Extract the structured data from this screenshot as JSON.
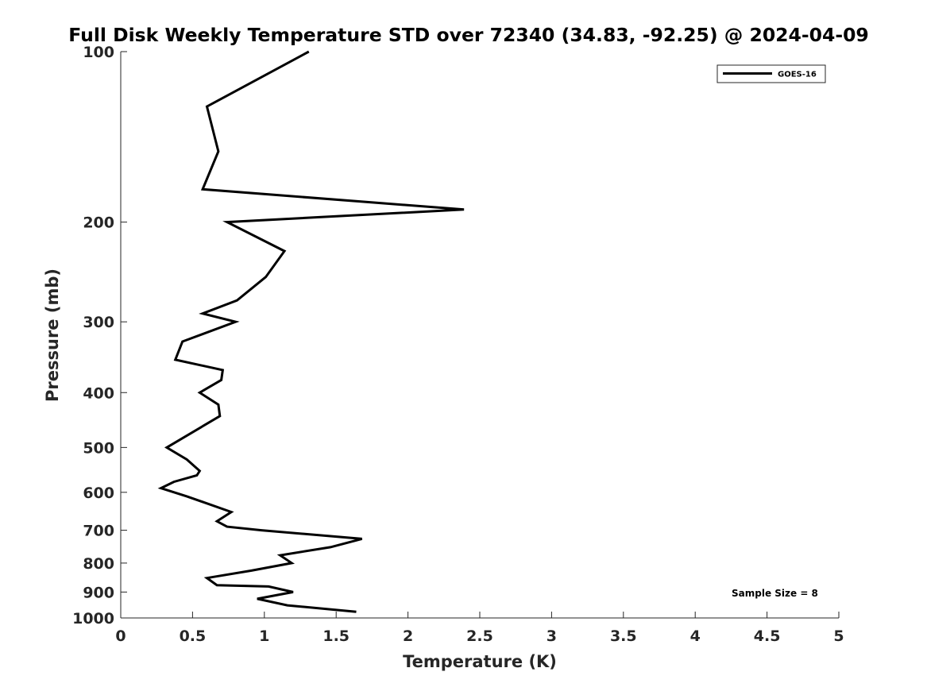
{
  "chart_data": {
    "type": "line",
    "title": "Full Disk Weekly Temperature STD over 72340 (34.83, -92.25) @ 2024-04-09",
    "xlabel": "Temperature (K)",
    "ylabel": "Pressure (mb)",
    "xlim": [
      0,
      5
    ],
    "ylim": [
      100,
      1000
    ],
    "y_scale": "log",
    "y_reversed": true,
    "x_ticks": [
      "0",
      "0.5",
      "1",
      "1.5",
      "2",
      "2.5",
      "3",
      "3.5",
      "4",
      "4.5",
      "5"
    ],
    "y_ticks": [
      "100",
      "200",
      "300",
      "400",
      "500",
      "600",
      "700",
      "800",
      "900",
      "1000"
    ],
    "grid": false,
    "legend_position": "top-right",
    "series": [
      {
        "name": "GOES-16",
        "color": "#000000",
        "points": [
          [
            1.31,
            100
          ],
          [
            0.6,
            125
          ],
          [
            0.68,
            150
          ],
          [
            0.57,
            175
          ],
          [
            2.39,
            190
          ],
          [
            0.74,
            200
          ],
          [
            1.14,
            225
          ],
          [
            1.01,
            250
          ],
          [
            0.81,
            275
          ],
          [
            0.57,
            290
          ],
          [
            0.8,
            300
          ],
          [
            0.43,
            325
          ],
          [
            0.38,
            350
          ],
          [
            0.71,
            365
          ],
          [
            0.7,
            380
          ],
          [
            0.55,
            400
          ],
          [
            0.68,
            420
          ],
          [
            0.69,
            440
          ],
          [
            0.32,
            500
          ],
          [
            0.46,
            525
          ],
          [
            0.55,
            550
          ],
          [
            0.53,
            560
          ],
          [
            0.37,
            575
          ],
          [
            0.28,
            590
          ],
          [
            0.46,
            610
          ],
          [
            0.77,
            650
          ],
          [
            0.67,
            675
          ],
          [
            0.74,
            690
          ],
          [
            0.98,
            700
          ],
          [
            1.68,
            725
          ],
          [
            1.46,
            750
          ],
          [
            1.11,
            775
          ],
          [
            1.19,
            800
          ],
          [
            0.91,
            825
          ],
          [
            0.6,
            850
          ],
          [
            0.67,
            875
          ],
          [
            1.03,
            880
          ],
          [
            1.2,
            900
          ],
          [
            0.95,
            925
          ],
          [
            1.16,
            950
          ],
          [
            1.64,
            975
          ]
        ]
      }
    ],
    "annotations": [
      "Sample Size = 8"
    ]
  }
}
